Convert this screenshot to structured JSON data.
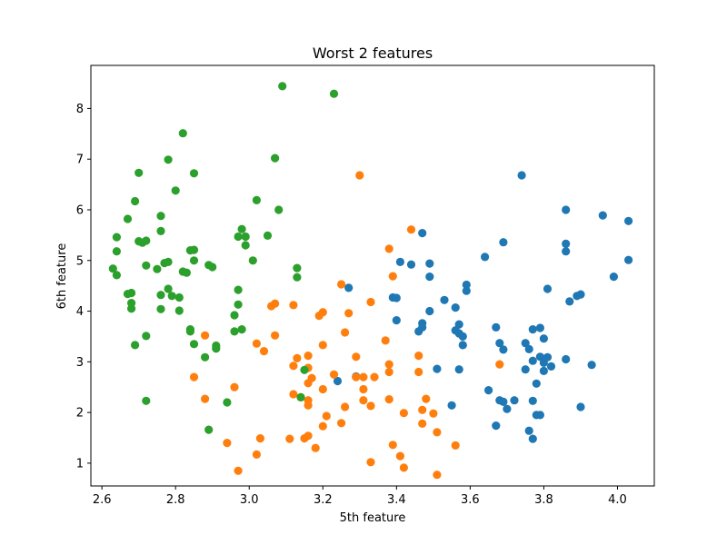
{
  "chart_data": {
    "type": "scatter",
    "title": "Worst 2 features",
    "xlabel": "5th feature",
    "ylabel": "6th feature",
    "xlim": [
      2.57,
      4.1
    ],
    "ylim": [
      0.55,
      8.85
    ],
    "x_ticks": [
      2.6,
      2.8,
      3.0,
      3.2,
      3.4,
      3.6,
      3.8,
      4.0
    ],
    "x_tick_labels": [
      "2.6",
      "2.8",
      "3.0",
      "3.2",
      "3.4",
      "3.6",
      "3.8",
      "4.0"
    ],
    "y_ticks": [
      1,
      2,
      3,
      4,
      5,
      6,
      7,
      8
    ],
    "y_tick_labels": [
      "1",
      "2",
      "3",
      "4",
      "5",
      "6",
      "7",
      "8"
    ],
    "grid": false,
    "legend": false,
    "series": [
      {
        "color": "#1f77b4",
        "points": [
          [
            3.74,
            6.68
          ],
          [
            3.86,
            6.0
          ],
          [
            3.96,
            5.89
          ],
          [
            4.03,
            5.78
          ],
          [
            3.69,
            5.36
          ],
          [
            3.86,
            5.33
          ],
          [
            3.86,
            5.18
          ],
          [
            3.64,
            5.07
          ],
          [
            4.03,
            5.01
          ],
          [
            3.47,
            5.54
          ],
          [
            3.44,
            4.92
          ],
          [
            3.49,
            4.94
          ],
          [
            3.41,
            4.97
          ],
          [
            3.99,
            4.68
          ],
          [
            3.49,
            4.68
          ],
          [
            3.59,
            4.52
          ],
          [
            3.59,
            4.4
          ],
          [
            3.81,
            4.44
          ],
          [
            3.89,
            4.3
          ],
          [
            3.9,
            4.33
          ],
          [
            3.87,
            4.19
          ],
          [
            3.53,
            4.22
          ],
          [
            3.39,
            4.27
          ],
          [
            3.4,
            4.26
          ],
          [
            3.56,
            4.07
          ],
          [
            3.49,
            4.0
          ],
          [
            3.27,
            4.46
          ],
          [
            3.4,
            3.82
          ],
          [
            3.47,
            3.76
          ],
          [
            3.47,
            3.68
          ],
          [
            3.46,
            3.6
          ],
          [
            3.57,
            3.74
          ],
          [
            3.57,
            3.56
          ],
          [
            3.58,
            3.5
          ],
          [
            3.56,
            3.62
          ],
          [
            3.58,
            3.33
          ],
          [
            3.67,
            3.68
          ],
          [
            3.77,
            3.64
          ],
          [
            3.79,
            3.67
          ],
          [
            3.8,
            3.46
          ],
          [
            3.68,
            3.37
          ],
          [
            3.69,
            3.24
          ],
          [
            3.75,
            3.37
          ],
          [
            3.76,
            3.25
          ],
          [
            3.77,
            3.02
          ],
          [
            3.79,
            3.1
          ],
          [
            3.8,
            2.98
          ],
          [
            3.81,
            3.09
          ],
          [
            3.82,
            2.91
          ],
          [
            3.8,
            2.82
          ],
          [
            3.75,
            2.85
          ],
          [
            3.86,
            3.05
          ],
          [
            3.93,
            2.94
          ],
          [
            3.57,
            2.85
          ],
          [
            3.51,
            2.86
          ],
          [
            3.65,
            2.44
          ],
          [
            3.68,
            2.24
          ],
          [
            3.69,
            2.21
          ],
          [
            3.7,
            2.07
          ],
          [
            3.72,
            2.24
          ],
          [
            3.77,
            2.23
          ],
          [
            3.78,
            2.57
          ],
          [
            3.9,
            2.11
          ],
          [
            3.55,
            2.14
          ],
          [
            3.67,
            1.74
          ],
          [
            3.78,
            1.95
          ],
          [
            3.79,
            1.95
          ],
          [
            3.76,
            1.64
          ],
          [
            3.77,
            1.48
          ],
          [
            3.24,
            2.62
          ],
          [
            3.29,
            2.71
          ]
        ]
      },
      {
        "color": "#ff7f0e",
        "points": [
          [
            3.3,
            6.68
          ],
          [
            3.44,
            5.61
          ],
          [
            3.38,
            5.23
          ],
          [
            3.25,
            4.53
          ],
          [
            3.39,
            4.69
          ],
          [
            3.33,
            4.18
          ],
          [
            3.06,
            4.1
          ],
          [
            3.07,
            4.15
          ],
          [
            3.12,
            4.12
          ],
          [
            3.19,
            3.91
          ],
          [
            3.2,
            3.98
          ],
          [
            3.27,
            3.96
          ],
          [
            2.88,
            3.52
          ],
          [
            3.07,
            3.52
          ],
          [
            3.02,
            3.36
          ],
          [
            3.04,
            3.21
          ],
          [
            3.2,
            3.33
          ],
          [
            3.26,
            3.58
          ],
          [
            3.37,
            3.42
          ],
          [
            3.13,
            3.07
          ],
          [
            3.16,
            3.12
          ],
          [
            3.12,
            2.92
          ],
          [
            3.16,
            2.88
          ],
          [
            3.29,
            3.1
          ],
          [
            3.38,
            2.95
          ],
          [
            3.46,
            3.12
          ],
          [
            3.38,
            2.8
          ],
          [
            3.46,
            2.8
          ],
          [
            3.68,
            2.95
          ],
          [
            2.85,
            2.7
          ],
          [
            2.96,
            2.5
          ],
          [
            3.17,
            2.68
          ],
          [
            3.16,
            2.58
          ],
          [
            3.23,
            2.75
          ],
          [
            3.2,
            2.46
          ],
          [
            3.29,
            2.7
          ],
          [
            3.31,
            2.7
          ],
          [
            3.34,
            2.7
          ],
          [
            3.31,
            2.46
          ],
          [
            3.12,
            2.36
          ],
          [
            3.14,
            2.3
          ],
          [
            3.16,
            2.24
          ],
          [
            3.16,
            2.14
          ],
          [
            3.26,
            2.11
          ],
          [
            3.31,
            2.24
          ],
          [
            3.33,
            2.13
          ],
          [
            3.38,
            2.26
          ],
          [
            3.48,
            2.27
          ],
          [
            3.42,
            1.99
          ],
          [
            3.47,
            2.05
          ],
          [
            3.5,
            1.98
          ],
          [
            2.88,
            2.27
          ],
          [
            3.21,
            1.93
          ],
          [
            3.2,
            1.73
          ],
          [
            3.25,
            1.79
          ],
          [
            3.47,
            1.78
          ],
          [
            3.51,
            1.61
          ],
          [
            3.16,
            1.54
          ],
          [
            3.15,
            1.49
          ],
          [
            3.11,
            1.48
          ],
          [
            3.03,
            1.49
          ],
          [
            2.94,
            1.4
          ],
          [
            3.18,
            1.3
          ],
          [
            3.39,
            1.36
          ],
          [
            3.56,
            1.35
          ],
          [
            3.02,
            1.17
          ],
          [
            3.41,
            1.14
          ],
          [
            3.33,
            1.02
          ],
          [
            3.42,
            0.91
          ],
          [
            2.97,
            0.85
          ],
          [
            3.51,
            0.77
          ]
        ]
      },
      {
        "color": "#2ca02c",
        "points": [
          [
            3.09,
            8.44
          ],
          [
            3.23,
            8.29
          ],
          [
            2.82,
            7.51
          ],
          [
            2.78,
            6.99
          ],
          [
            3.07,
            7.02
          ],
          [
            2.7,
            6.73
          ],
          [
            2.85,
            6.72
          ],
          [
            2.8,
            6.38
          ],
          [
            3.02,
            6.19
          ],
          [
            2.69,
            6.17
          ],
          [
            3.08,
            6.0
          ],
          [
            2.76,
            5.88
          ],
          [
            2.67,
            5.82
          ],
          [
            2.98,
            5.62
          ],
          [
            2.76,
            5.58
          ],
          [
            2.64,
            5.46
          ],
          [
            2.97,
            5.47
          ],
          [
            2.99,
            5.47
          ],
          [
            3.05,
            5.49
          ],
          [
            2.7,
            5.38
          ],
          [
            2.72,
            5.39
          ],
          [
            2.71,
            5.35
          ],
          [
            2.99,
            5.3
          ],
          [
            2.64,
            5.18
          ],
          [
            2.84,
            5.2
          ],
          [
            2.85,
            5.21
          ],
          [
            3.01,
            5.0
          ],
          [
            2.77,
            4.95
          ],
          [
            2.78,
            4.97
          ],
          [
            2.85,
            5.0
          ],
          [
            2.63,
            4.84
          ],
          [
            2.72,
            4.9
          ],
          [
            2.75,
            4.83
          ],
          [
            2.89,
            4.91
          ],
          [
            2.9,
            4.87
          ],
          [
            2.82,
            4.78
          ],
          [
            2.83,
            4.76
          ],
          [
            2.64,
            4.71
          ],
          [
            3.13,
            4.85
          ],
          [
            3.13,
            4.67
          ],
          [
            2.78,
            4.44
          ],
          [
            2.67,
            4.34
          ],
          [
            2.68,
            4.36
          ],
          [
            2.76,
            4.32
          ],
          [
            2.79,
            4.3
          ],
          [
            2.81,
            4.27
          ],
          [
            2.68,
            4.16
          ],
          [
            2.68,
            4.05
          ],
          [
            2.76,
            4.04
          ],
          [
            2.81,
            4.01
          ],
          [
            2.97,
            4.42
          ],
          [
            2.97,
            4.13
          ],
          [
            2.96,
            3.92
          ],
          [
            2.84,
            3.6
          ],
          [
            2.84,
            3.64
          ],
          [
            2.96,
            3.6
          ],
          [
            2.98,
            3.64
          ],
          [
            2.72,
            3.51
          ],
          [
            2.69,
            3.33
          ],
          [
            2.85,
            3.35
          ],
          [
            2.91,
            3.26
          ],
          [
            2.91,
            3.32
          ],
          [
            2.88,
            3.09
          ],
          [
            3.15,
            2.84
          ],
          [
            3.14,
            2.3
          ],
          [
            2.72,
            2.23
          ],
          [
            2.94,
            2.2
          ],
          [
            2.89,
            1.66
          ]
        ]
      }
    ]
  }
}
